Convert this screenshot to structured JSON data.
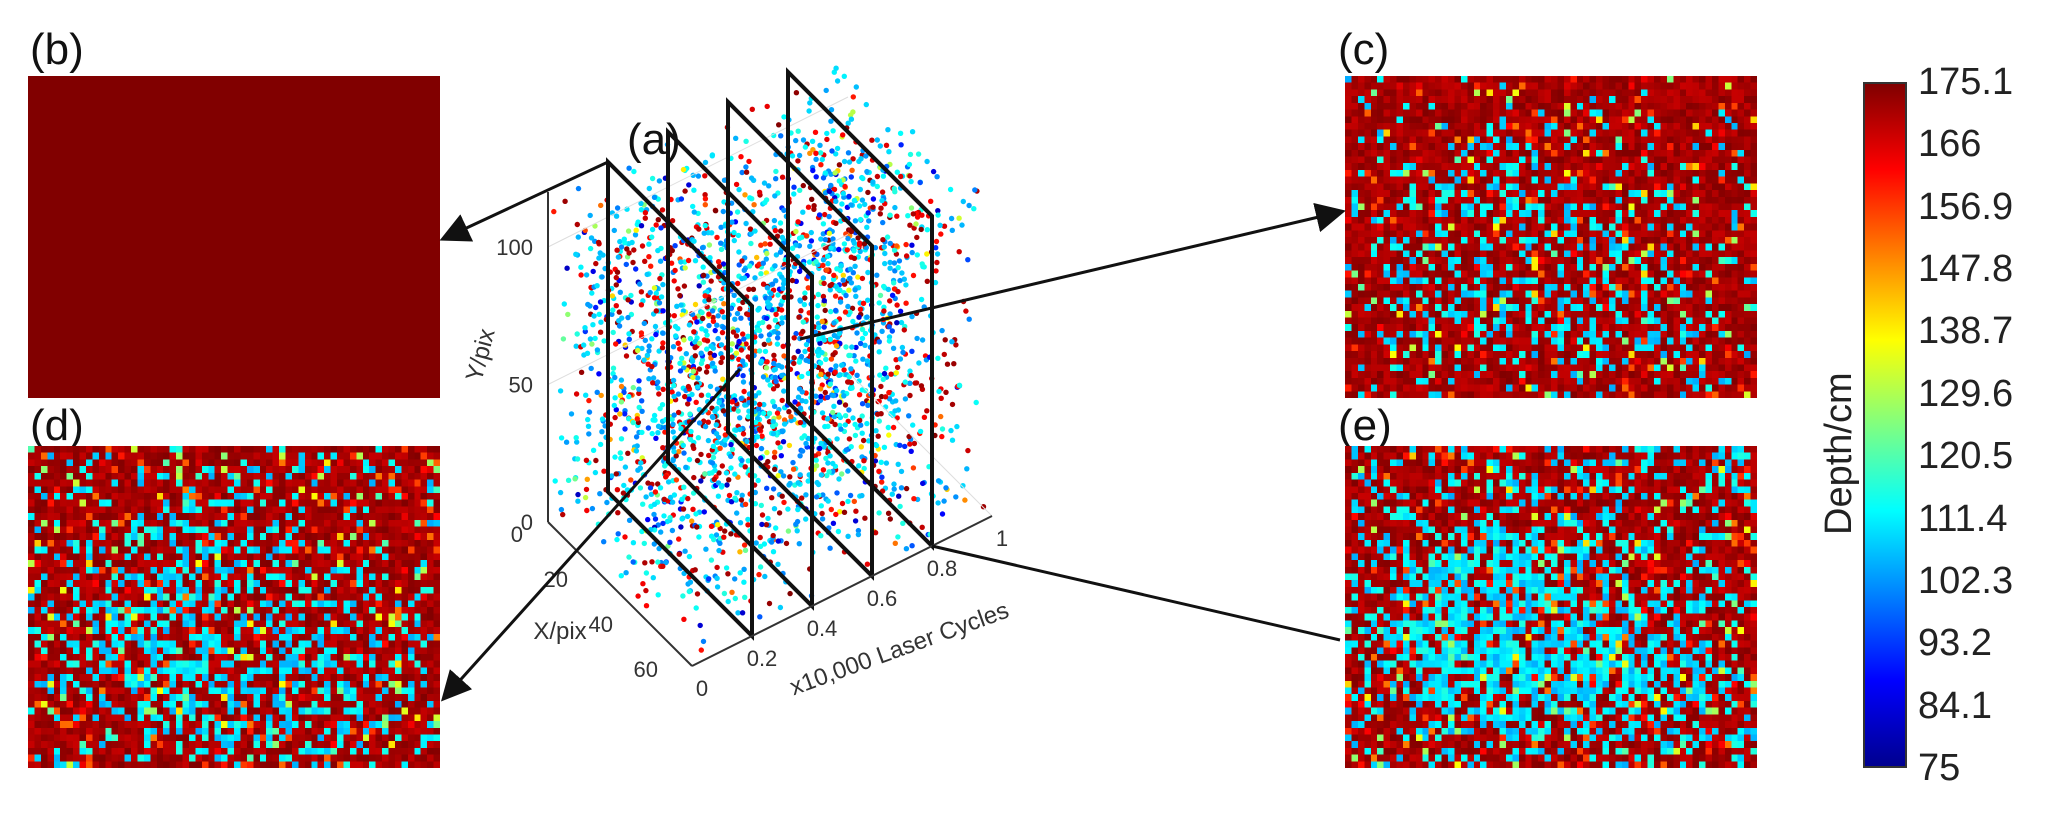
{
  "panels": {
    "b": {
      "label": "(b)",
      "pattern": "uniform"
    },
    "c": {
      "label": "(c)",
      "pattern": "sparse"
    },
    "d": {
      "label": "(d)",
      "pattern": "moderate"
    },
    "e": {
      "label": "(e)",
      "pattern": "dense"
    },
    "a": {
      "label": "(a)"
    }
  },
  "chart_data": [
    {
      "type": "scatter",
      "title": "(a)",
      "xlabel": "X/pix",
      "ylabel": "Y/pix",
      "zlabel": "x10,000 Laser Cycles",
      "x_ticks": [
        "0",
        "20",
        "40",
        "60"
      ],
      "y_ticks": [
        "0",
        "50",
        "100"
      ],
      "z_ticks": [
        "0",
        "0.2",
        "0.4",
        "0.6",
        "0.8",
        "1"
      ],
      "xlim": [
        0,
        64
      ],
      "ylim": [
        0,
        120
      ],
      "zlim": [
        0,
        1
      ],
      "slices_at_cycles": [
        0.2,
        0.4,
        0.6,
        0.8
      ]
    },
    {
      "type": "heatmap",
      "colorbar_label": "Depth/cm",
      "colorbar_ticks": [
        "175.1",
        "166",
        "156.9",
        "147.8",
        "138.7",
        "129.6",
        "120.5",
        "111.4",
        "102.3",
        "93.2",
        "84.1",
        "75"
      ],
      "range": [
        75,
        175.1
      ],
      "colormap": "jet"
    }
  ],
  "colors": {
    "jet": [
      "#00008f",
      "#0000ff",
      "#0080ff",
      "#00ffff",
      "#80ff80",
      "#ffff00",
      "#ff8000",
      "#ff0000",
      "#800000"
    ]
  }
}
